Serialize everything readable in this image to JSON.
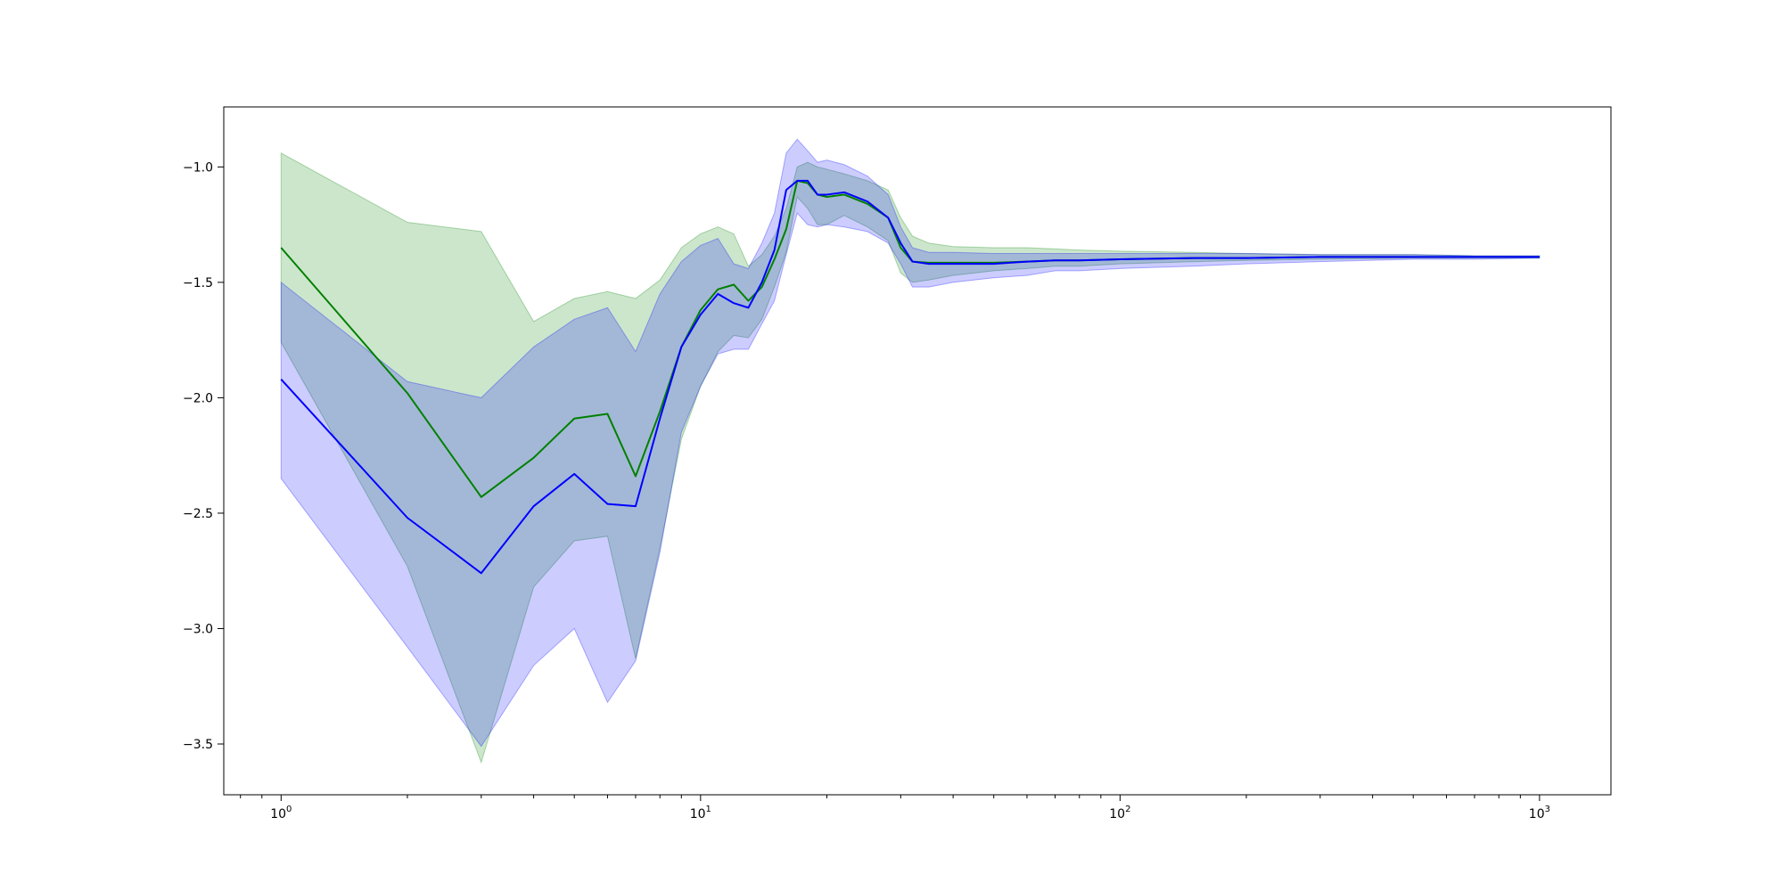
{
  "chart_data": {
    "type": "line",
    "title": "",
    "xlabel": "",
    "ylabel": "",
    "x_scale": "log",
    "xlim": [
      0.73,
      1480
    ],
    "ylim": [
      -3.72,
      -0.74
    ],
    "grid": false,
    "legend": "none",
    "x_ticks": [
      {
        "value": 1,
        "base": "10",
        "exp": "0"
      },
      {
        "value": 10,
        "base": "10",
        "exp": "1"
      },
      {
        "value": 100,
        "base": "10",
        "exp": "2"
      },
      {
        "value": 1000,
        "base": "10",
        "exp": "3"
      }
    ],
    "y_ticks": [
      {
        "value": -1.0,
        "label": "−1.0"
      },
      {
        "value": -1.5,
        "label": "−1.5"
      },
      {
        "value": -2.0,
        "label": "−2.0"
      },
      {
        "value": -2.5,
        "label": "−2.5"
      },
      {
        "value": -3.0,
        "label": "−3.0"
      },
      {
        "value": -3.5,
        "label": "−3.5"
      }
    ],
    "series": [
      {
        "color": "#008000",
        "band_color": "#008000",
        "band_opacity": 0.2,
        "x": [
          1,
          2,
          3,
          4,
          5,
          6,
          7,
          8,
          9,
          10,
          11,
          12,
          13,
          14,
          15,
          16,
          17,
          18,
          19,
          20,
          22,
          25,
          28,
          30,
          32,
          35,
          40,
          50,
          60,
          70,
          80,
          100,
          150,
          200,
          300,
          500,
          700,
          1000
        ],
        "y": [
          -1.35,
          -1.98,
          -2.43,
          -2.26,
          -2.09,
          -2.07,
          -2.34,
          -2.06,
          -1.78,
          -1.62,
          -1.53,
          -1.51,
          -1.58,
          -1.52,
          -1.4,
          -1.27,
          -1.06,
          -1.07,
          -1.12,
          -1.13,
          -1.12,
          -1.16,
          -1.22,
          -1.35,
          -1.41,
          -1.415,
          -1.415,
          -1.415,
          -1.41,
          -1.405,
          -1.405,
          -1.4,
          -1.395,
          -1.395,
          -1.39,
          -1.39,
          -1.39,
          -1.39
        ],
        "upper": [
          -0.94,
          -1.24,
          -1.28,
          -1.67,
          -1.57,
          -1.54,
          -1.57,
          -1.49,
          -1.35,
          -1.29,
          -1.26,
          -1.29,
          -1.43,
          -1.38,
          -1.3,
          -1.18,
          -1.0,
          -0.98,
          -1.0,
          -1.01,
          -1.03,
          -1.06,
          -1.1,
          -1.22,
          -1.3,
          -1.33,
          -1.345,
          -1.35,
          -1.35,
          -1.355,
          -1.36,
          -1.365,
          -1.37,
          -1.375,
          -1.38,
          -1.38,
          -1.385,
          -1.385
        ],
        "lower": [
          -1.76,
          -2.73,
          -3.58,
          -2.82,
          -2.62,
          -2.6,
          -3.13,
          -2.65,
          -2.18,
          -1.95,
          -1.8,
          -1.73,
          -1.74,
          -1.66,
          -1.52,
          -1.37,
          -1.13,
          -1.18,
          -1.25,
          -1.25,
          -1.21,
          -1.26,
          -1.32,
          -1.46,
          -1.5,
          -1.49,
          -1.47,
          -1.45,
          -1.44,
          -1.43,
          -1.43,
          -1.42,
          -1.41,
          -1.405,
          -1.4,
          -1.395,
          -1.395,
          -1.395
        ]
      },
      {
        "color": "#0000ff",
        "band_color": "#0000ff",
        "band_opacity": 0.2,
        "x": [
          1,
          2,
          3,
          4,
          5,
          6,
          7,
          8,
          9,
          10,
          11,
          12,
          13,
          14,
          15,
          16,
          17,
          18,
          19,
          20,
          22,
          25,
          28,
          30,
          32,
          35,
          40,
          50,
          60,
          70,
          80,
          100,
          150,
          200,
          300,
          500,
          700,
          1000
        ],
        "y": [
          -1.92,
          -2.52,
          -2.76,
          -2.47,
          -2.33,
          -2.46,
          -2.47,
          -2.09,
          -1.78,
          -1.64,
          -1.55,
          -1.59,
          -1.61,
          -1.5,
          -1.36,
          -1.1,
          -1.06,
          -1.06,
          -1.12,
          -1.12,
          -1.11,
          -1.15,
          -1.22,
          -1.33,
          -1.41,
          -1.42,
          -1.42,
          -1.42,
          -1.41,
          -1.405,
          -1.405,
          -1.4,
          -1.395,
          -1.395,
          -1.39,
          -1.39,
          -1.39,
          -1.39
        ],
        "upper": [
          -1.5,
          -1.93,
          -2.0,
          -1.78,
          -1.66,
          -1.61,
          -1.8,
          -1.55,
          -1.41,
          -1.34,
          -1.31,
          -1.42,
          -1.44,
          -1.33,
          -1.2,
          -0.94,
          -0.88,
          -0.93,
          -0.98,
          -0.97,
          -0.99,
          -1.04,
          -1.12,
          -1.26,
          -1.35,
          -1.37,
          -1.37,
          -1.375,
          -1.375,
          -1.375,
          -1.375,
          -1.375,
          -1.375,
          -1.375,
          -1.38,
          -1.38,
          -1.385,
          -1.385
        ],
        "lower": [
          -2.35,
          -3.08,
          -3.51,
          -3.16,
          -3.0,
          -3.32,
          -3.14,
          -2.67,
          -2.15,
          -1.95,
          -1.81,
          -1.79,
          -1.79,
          -1.68,
          -1.58,
          -1.38,
          -1.2,
          -1.25,
          -1.26,
          -1.25,
          -1.26,
          -1.28,
          -1.33,
          -1.42,
          -1.52,
          -1.52,
          -1.5,
          -1.48,
          -1.47,
          -1.45,
          -1.45,
          -1.44,
          -1.43,
          -1.42,
          -1.41,
          -1.4,
          -1.4,
          -1.395
        ]
      }
    ]
  }
}
